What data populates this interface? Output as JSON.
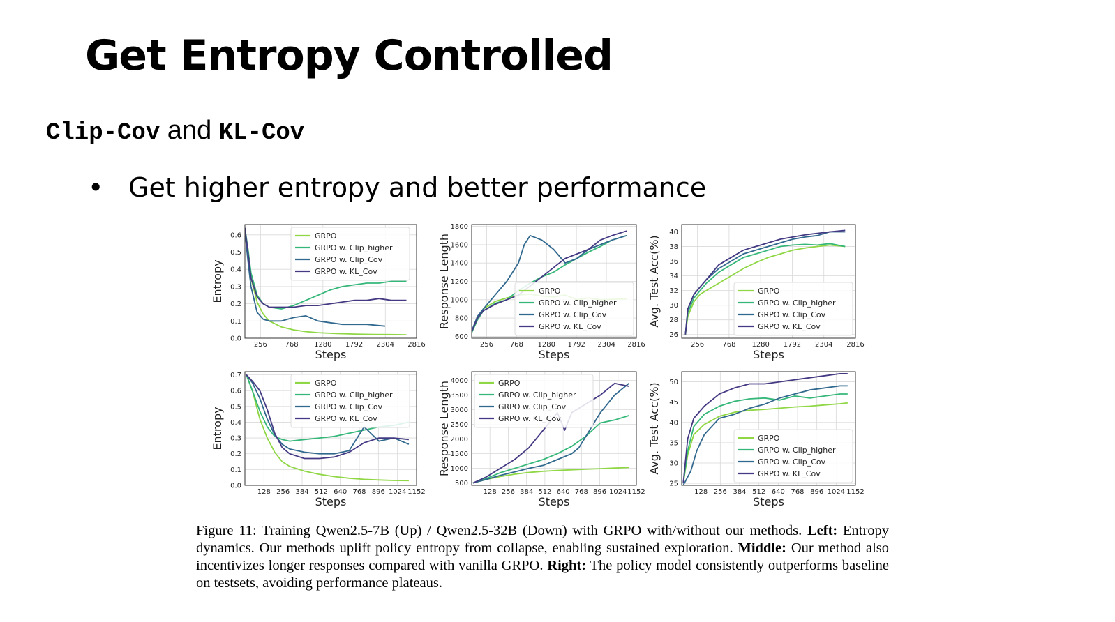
{
  "slide": {
    "title": "Get Entropy Controlled",
    "subtitle": {
      "code1": "Clip-Cov",
      "and": "and",
      "code2": "KL-Cov"
    },
    "bullet": {
      "marker": "•",
      "text": "Get higher entropy and better performance"
    }
  },
  "caption": {
    "lead": "Figure 11: Training Qwen2.5-7B (Up) / Qwen2.5-32B (Down) with GRPO with/without our methods.",
    "left_label": "Left:",
    "left_text": "Entropy dynamics. Our methods uplift policy entropy from collapse, enabling sustained exploration.",
    "middle_label": "Middle:",
    "middle_text": "Our method also incentivizes longer responses compared with vanilla GRPO.",
    "right_label": "Right:",
    "right_text": "The policy model consistently outperforms baseline on testsets, avoiding performance plateaus."
  },
  "colors": {
    "GRPO": "#8fd744",
    "GRPO w. Clip_higher": "#35b779",
    "GRPO w. Clip_Cov": "#31688e",
    "GRPO w. KL_Cov": "#443a83"
  },
  "chart_data": [
    {
      "type": "line",
      "xlabel": "Steps",
      "ylabel": "Entropy",
      "xlim": [
        0,
        2816
      ],
      "ylim": [
        0,
        0.66
      ],
      "xticks": [
        256,
        768,
        1280,
        1792,
        2304,
        2816
      ],
      "yticks": [
        0.0,
        0.1,
        0.2,
        0.3,
        0.4,
        0.5,
        0.6
      ],
      "grid": true,
      "legend": "top-right",
      "series": [
        {
          "name": "GRPO",
          "x": [
            0,
            50,
            100,
            200,
            300,
            400,
            600,
            800,
            1000,
            1200,
            1500,
            1800,
            2100,
            2400,
            2650
          ],
          "y": [
            0.62,
            0.5,
            0.35,
            0.21,
            0.14,
            0.1,
            0.065,
            0.048,
            0.038,
            0.032,
            0.027,
            0.024,
            0.022,
            0.021,
            0.02
          ]
        },
        {
          "name": "GRPO w. Clip_higher",
          "x": [
            0,
            50,
            100,
            200,
            300,
            400,
            600,
            800,
            1000,
            1200,
            1400,
            1600,
            1800,
            2000,
            2200,
            2400,
            2650
          ],
          "y": [
            0.64,
            0.52,
            0.38,
            0.25,
            0.2,
            0.18,
            0.17,
            0.19,
            0.22,
            0.25,
            0.28,
            0.3,
            0.31,
            0.32,
            0.32,
            0.33,
            0.33
          ]
        },
        {
          "name": "GRPO w. Clip_Cov",
          "x": [
            0,
            50,
            100,
            200,
            300,
            400,
            600,
            800,
            1000,
            1200,
            1400,
            1600,
            1800,
            2000,
            2300
          ],
          "y": [
            0.62,
            0.45,
            0.3,
            0.15,
            0.11,
            0.1,
            0.1,
            0.12,
            0.13,
            0.1,
            0.09,
            0.08,
            0.08,
            0.08,
            0.07
          ]
        },
        {
          "name": "GRPO w. KL_Cov",
          "x": [
            0,
            50,
            100,
            200,
            300,
            400,
            600,
            800,
            1000,
            1200,
            1400,
            1600,
            1800,
            2000,
            2200,
            2400,
            2650
          ],
          "y": [
            0.64,
            0.5,
            0.35,
            0.24,
            0.2,
            0.18,
            0.18,
            0.18,
            0.19,
            0.19,
            0.2,
            0.21,
            0.22,
            0.22,
            0.23,
            0.22,
            0.22
          ]
        }
      ]
    },
    {
      "type": "line",
      "xlabel": "Steps",
      "ylabel": "Response Length",
      "xlim": [
        0,
        2816
      ],
      "ylim": [
        580,
        1820
      ],
      "xticks": [
        256,
        768,
        1280,
        1792,
        2304,
        2816
      ],
      "yticks": [
        600,
        800,
        1000,
        1200,
        1400,
        1600,
        1800
      ],
      "grid": true,
      "legend": "bottom-right",
      "series": [
        {
          "name": "GRPO",
          "x": [
            0,
            100,
            200,
            400,
            600,
            800,
            1000,
            1200,
            1400,
            1600,
            1800,
            2000,
            2200,
            2650
          ],
          "y": [
            640,
            800,
            900,
            980,
            1020,
            1050,
            1060,
            1040,
            1030,
            1050,
            1000,
            1020,
            1000,
            1010
          ]
        },
        {
          "name": "GRPO w. Clip_higher",
          "x": [
            0,
            100,
            200,
            400,
            600,
            800,
            1000,
            1200,
            1400,
            1600,
            1800,
            2000,
            2200,
            2400,
            2650
          ],
          "y": [
            640,
            780,
            880,
            960,
            1000,
            1100,
            1180,
            1250,
            1300,
            1380,
            1450,
            1520,
            1580,
            1650,
            1700
          ]
        },
        {
          "name": "GRPO w. Clip_Cov",
          "x": [
            0,
            100,
            200,
            400,
            600,
            800,
            900,
            1000,
            1200,
            1400,
            1600,
            1800,
            2000,
            2200,
            2400,
            2650
          ],
          "y": [
            660,
            820,
            900,
            1050,
            1200,
            1400,
            1600,
            1700,
            1650,
            1550,
            1400,
            1450,
            1550,
            1600,
            1650,
            1700
          ]
        },
        {
          "name": "GRPO w. KL_Cov",
          "x": [
            0,
            100,
            200,
            400,
            600,
            800,
            1000,
            1200,
            1400,
            1600,
            1800,
            2000,
            2200,
            2400,
            2650
          ],
          "y": [
            650,
            800,
            880,
            950,
            1000,
            1050,
            1150,
            1250,
            1350,
            1450,
            1500,
            1550,
            1650,
            1700,
            1750
          ]
        }
      ]
    },
    {
      "type": "line",
      "xlabel": "Steps",
      "ylabel": "Avg. Test Acc(%)",
      "xlim": [
        0,
        2816
      ],
      "ylim": [
        25.5,
        41
      ],
      "xticks": [
        256,
        768,
        1280,
        1792,
        2304,
        2816
      ],
      "yticks": [
        26,
        28,
        30,
        32,
        34,
        36,
        38,
        40
      ],
      "grid": true,
      "legend": "bottom-right",
      "series": [
        {
          "name": "GRPO",
          "x": [
            60,
            100,
            200,
            300,
            400,
            600,
            800,
            1000,
            1200,
            1400,
            1600,
            1800,
            2000,
            2200,
            2400,
            2650
          ],
          "y": [
            26,
            28.5,
            30.5,
            31.5,
            32,
            33,
            34,
            35,
            35.8,
            36.5,
            37,
            37.5,
            37.8,
            38,
            38.2,
            38
          ]
        },
        {
          "name": "GRPO w. Clip_higher",
          "x": [
            60,
            100,
            200,
            300,
            400,
            600,
            800,
            1000,
            1200,
            1400,
            1600,
            1800,
            2000,
            2200,
            2400,
            2650
          ],
          "y": [
            26,
            29,
            31,
            32,
            33,
            34.5,
            35.5,
            36.5,
            37,
            37.5,
            38,
            38.2,
            38.3,
            38.2,
            38.4,
            38
          ]
        },
        {
          "name": "GRPO w. Clip_Cov",
          "x": [
            60,
            100,
            200,
            300,
            400,
            600,
            800,
            1000,
            1200,
            1400,
            1600,
            1800,
            2000,
            2200,
            2400,
            2650
          ],
          "y": [
            26,
            29.5,
            31.5,
            32.5,
            33.5,
            35,
            36,
            37,
            37.5,
            38,
            38.5,
            39,
            39.3,
            39.5,
            40,
            40
          ]
        },
        {
          "name": "GRPO w. KL_Cov",
          "x": [
            60,
            100,
            200,
            300,
            400,
            600,
            800,
            1000,
            1200,
            1400,
            1600,
            1800,
            2000,
            2200,
            2400,
            2650
          ],
          "y": [
            26,
            29.5,
            31.5,
            32.5,
            33.5,
            35.5,
            36.5,
            37.5,
            38,
            38.5,
            39,
            39.3,
            39.6,
            39.8,
            40,
            40.2
          ]
        }
      ]
    },
    {
      "type": "line",
      "xlabel": "Steps",
      "ylabel": "Entropy",
      "xlim": [
        0,
        1152
      ],
      "ylim": [
        0,
        0.72
      ],
      "xticks": [
        128,
        256,
        384,
        512,
        640,
        768,
        896,
        1024,
        1152
      ],
      "yticks": [
        0.0,
        0.1,
        0.2,
        0.3,
        0.4,
        0.5,
        0.6,
        0.7
      ],
      "grid": true,
      "legend": "top-right",
      "series": [
        {
          "name": "GRPO",
          "x": [
            10,
            50,
            100,
            150,
            200,
            250,
            300,
            400,
            500,
            600,
            700,
            800,
            900,
            1000,
            1100
          ],
          "y": [
            0.7,
            0.6,
            0.42,
            0.3,
            0.21,
            0.15,
            0.12,
            0.09,
            0.07,
            0.055,
            0.045,
            0.038,
            0.034,
            0.031,
            0.03
          ]
        },
        {
          "name": "GRPO w. Clip_higher",
          "x": [
            10,
            50,
            100,
            150,
            200,
            250,
            300,
            400,
            500,
            600,
            700,
            800,
            900,
            1000,
            1100
          ],
          "y": [
            0.7,
            0.6,
            0.47,
            0.37,
            0.31,
            0.29,
            0.28,
            0.29,
            0.3,
            0.31,
            0.33,
            0.35,
            0.37,
            0.38,
            0.4
          ]
        },
        {
          "name": "GRPO w. Clip_Cov",
          "x": [
            10,
            50,
            100,
            150,
            200,
            250,
            300,
            400,
            500,
            600,
            700,
            800,
            900,
            1000,
            1100
          ],
          "y": [
            0.7,
            0.65,
            0.55,
            0.42,
            0.32,
            0.26,
            0.23,
            0.21,
            0.2,
            0.2,
            0.22,
            0.37,
            0.28,
            0.3,
            0.26
          ]
        },
        {
          "name": "GRPO w. KL_Cov",
          "x": [
            10,
            50,
            100,
            150,
            200,
            250,
            300,
            400,
            500,
            600,
            700,
            800,
            900,
            1000,
            1100
          ],
          "y": [
            0.7,
            0.66,
            0.6,
            0.48,
            0.33,
            0.24,
            0.2,
            0.17,
            0.17,
            0.18,
            0.21,
            0.27,
            0.3,
            0.3,
            0.29
          ]
        }
      ]
    },
    {
      "type": "line",
      "xlabel": "Steps",
      "ylabel": "Response Length",
      "xlim": [
        0,
        1152
      ],
      "ylim": [
        420,
        4300
      ],
      "xticks": [
        128,
        256,
        384,
        512,
        640,
        768,
        896,
        1024,
        1152
      ],
      "yticks": [
        500,
        1000,
        1500,
        2000,
        2500,
        3000,
        3500,
        4000
      ],
      "grid": true,
      "legend": "top-left",
      "series": [
        {
          "name": "GRPO",
          "x": [
            10,
            100,
            200,
            300,
            400,
            500,
            600,
            700,
            800,
            900,
            1000,
            1100
          ],
          "y": [
            500,
            620,
            720,
            800,
            860,
            900,
            930,
            950,
            970,
            990,
            1010,
            1030
          ]
        },
        {
          "name": "GRPO w. Clip_higher",
          "x": [
            10,
            100,
            200,
            300,
            400,
            500,
            600,
            700,
            800,
            900,
            1000,
            1100
          ],
          "y": [
            500,
            650,
            850,
            1000,
            1150,
            1300,
            1500,
            1750,
            2100,
            2550,
            2650,
            2800
          ]
        },
        {
          "name": "GRPO w. Clip_Cov",
          "x": [
            10,
            100,
            200,
            300,
            400,
            500,
            600,
            700,
            750,
            800,
            900,
            1000,
            1100
          ],
          "y": [
            500,
            620,
            760,
            880,
            1000,
            1100,
            1300,
            1500,
            1700,
            2100,
            2900,
            3500,
            3900
          ]
        },
        {
          "name": "GRPO w. KL_Cov",
          "x": [
            10,
            100,
            200,
            300,
            400,
            500,
            600,
            650,
            700,
            800,
            900,
            1000,
            1100
          ],
          "y": [
            500,
            700,
            1000,
            1300,
            1700,
            2300,
            2900,
            2300,
            2900,
            3200,
            3500,
            3900,
            3800
          ]
        }
      ]
    },
    {
      "type": "line",
      "xlabel": "Steps",
      "ylabel": "Avg. Test Acc(%)",
      "xlim": [
        0,
        1152
      ],
      "ylim": [
        24.5,
        52.5
      ],
      "xticks": [
        128,
        256,
        384,
        512,
        640,
        768,
        896,
        1024,
        1152
      ],
      "yticks": [
        25,
        30,
        35,
        40,
        45,
        50
      ],
      "grid": true,
      "legend": "bottom-right",
      "series": [
        {
          "name": "GRPO",
          "x": [
            10,
            40,
            80,
            150,
            250,
            350,
            450,
            550,
            650,
            750,
            850,
            950,
            1050,
            1100
          ],
          "y": [
            25,
            32,
            37,
            39.5,
            41.5,
            42.5,
            43,
            43.2,
            43.5,
            43.8,
            44,
            44.3,
            44.6,
            44.8
          ]
        },
        {
          "name": "GRPO w. Clip_higher",
          "x": [
            10,
            40,
            80,
            150,
            250,
            350,
            450,
            550,
            650,
            750,
            850,
            950,
            1050,
            1100
          ],
          "y": [
            25,
            33,
            39,
            42,
            44,
            45.2,
            45.8,
            46,
            45.5,
            46.5,
            46,
            46.5,
            47,
            47
          ]
        },
        {
          "name": "GRPO w. Clip_Cov",
          "x": [
            10,
            60,
            100,
            150,
            250,
            350,
            450,
            550,
            650,
            750,
            850,
            950,
            1050,
            1100
          ],
          "y": [
            24.5,
            28,
            33,
            37,
            41,
            42,
            43.5,
            44.5,
            46,
            47,
            48,
            48.5,
            49,
            49
          ]
        },
        {
          "name": "GRPO w. KL_Cov",
          "x": [
            10,
            40,
            80,
            150,
            250,
            350,
            450,
            550,
            650,
            750,
            850,
            950,
            1050,
            1100
          ],
          "y": [
            25,
            36,
            41,
            44,
            47,
            48.5,
            49.5,
            49.5,
            50,
            50.5,
            51,
            51.5,
            52,
            52
          ]
        }
      ]
    }
  ]
}
